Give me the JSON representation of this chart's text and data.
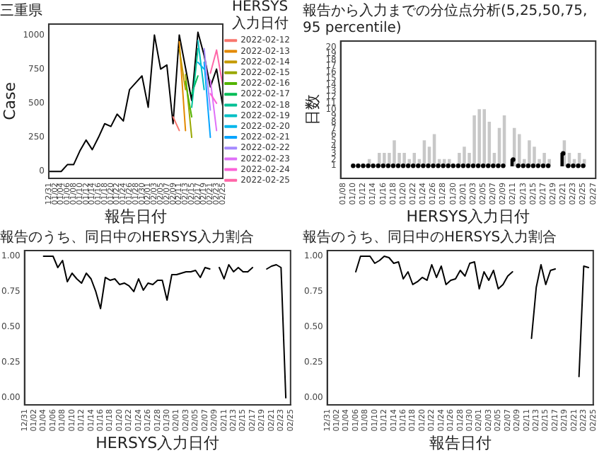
{
  "chart_data": [
    {
      "type": "line",
      "title": "三重県",
      "xlabel": "報告日付",
      "ylabel": "Case",
      "legend": "right",
      "legend_title": "HERSYS入力日付",
      "categories": [
        "12/31",
        "01/02",
        "01/04",
        "01/06",
        "01/08",
        "01/10",
        "01/12",
        "01/14",
        "01/16",
        "01/18",
        "01/20",
        "01/22",
        "01/24",
        "01/26",
        "01/28",
        "01/30",
        "02/01",
        "02/03",
        "02/05",
        "02/07",
        "02/09",
        "02/11",
        "02/13",
        "02/15",
        "02/17",
        "02/19",
        "02/21",
        "02/23",
        "02/25"
      ],
      "ylim": [
        -50,
        1080
      ],
      "yticks": [
        0,
        250,
        500,
        750,
        1000
      ],
      "series": [
        {
          "name": "2022-02-12",
          "color": "#f8766d",
          "values": [
            null,
            null,
            null,
            null,
            null,
            null,
            null,
            null,
            null,
            null,
            null,
            null,
            null,
            null,
            null,
            null,
            null,
            null,
            null,
            null,
            400,
            300,
            null,
            null,
            null,
            null,
            null,
            null,
            null
          ]
        },
        {
          "name": "2022-02-13",
          "color": "#e38900",
          "values": [
            null,
            null,
            null,
            null,
            null,
            null,
            null,
            null,
            null,
            null,
            null,
            null,
            null,
            null,
            null,
            null,
            null,
            null,
            null,
            null,
            null,
            950,
            300,
            null,
            null,
            null,
            null,
            null,
            null
          ]
        },
        {
          "name": "2022-02-14",
          "color": "#c49a00",
          "values": [
            null,
            null,
            null,
            null,
            null,
            null,
            null,
            null,
            null,
            null,
            null,
            null,
            null,
            null,
            null,
            null,
            null,
            null,
            null,
            null,
            null,
            900,
            600,
            null,
            null,
            null,
            null,
            null,
            null
          ]
        },
        {
          "name": "2022-02-15",
          "color": "#99a800",
          "values": [
            null,
            null,
            null,
            null,
            null,
            null,
            null,
            null,
            null,
            null,
            null,
            null,
            null,
            null,
            null,
            null,
            null,
            null,
            null,
            null,
            null,
            null,
            710,
            250,
            null,
            null,
            null,
            null,
            null
          ]
        },
        {
          "name": "2022-02-16",
          "color": "#53b400",
          "values": [
            null,
            null,
            null,
            null,
            null,
            null,
            null,
            null,
            null,
            null,
            null,
            null,
            null,
            null,
            null,
            null,
            null,
            null,
            null,
            null,
            null,
            null,
            660,
            400,
            null,
            null,
            null,
            null,
            null
          ]
        },
        {
          "name": "2022-02-17",
          "color": "#00bc56",
          "values": [
            null,
            null,
            null,
            null,
            null,
            null,
            null,
            null,
            null,
            null,
            null,
            null,
            null,
            null,
            null,
            null,
            null,
            null,
            null,
            null,
            null,
            null,
            null,
            570,
            700,
            null,
            null,
            null,
            null
          ]
        },
        {
          "name": "2022-02-18",
          "color": "#00c094",
          "values": [
            null,
            null,
            null,
            null,
            null,
            null,
            null,
            null,
            null,
            null,
            null,
            null,
            null,
            null,
            null,
            null,
            null,
            null,
            null,
            null,
            null,
            null,
            null,
            470,
            900,
            null,
            null,
            null,
            null
          ]
        },
        {
          "name": "2022-02-19",
          "color": "#00bfc4",
          "values": [
            null,
            null,
            null,
            null,
            null,
            null,
            null,
            null,
            null,
            null,
            null,
            null,
            null,
            null,
            null,
            null,
            null,
            null,
            null,
            null,
            null,
            null,
            null,
            null,
            960,
            600,
            null,
            null,
            null
          ]
        },
        {
          "name": "2022-02-20",
          "color": "#00b6eb",
          "values": [
            null,
            null,
            null,
            null,
            null,
            null,
            null,
            null,
            null,
            null,
            null,
            null,
            null,
            null,
            null,
            null,
            null,
            null,
            null,
            null,
            null,
            null,
            null,
            null,
            800,
            750,
            null,
            null,
            null
          ]
        },
        {
          "name": "2022-02-21",
          "color": "#06a4ff",
          "values": [
            null,
            null,
            null,
            null,
            null,
            null,
            null,
            null,
            null,
            null,
            null,
            null,
            null,
            null,
            null,
            null,
            null,
            null,
            null,
            null,
            null,
            null,
            null,
            null,
            null,
            800,
            250,
            null,
            null
          ]
        },
        {
          "name": "2022-02-22",
          "color": "#a58aff",
          "values": [
            null,
            null,
            null,
            null,
            null,
            null,
            null,
            null,
            null,
            null,
            null,
            null,
            null,
            null,
            null,
            null,
            null,
            null,
            null,
            null,
            null,
            null,
            null,
            null,
            null,
            900,
            450,
            null,
            null
          ]
        },
        {
          "name": "2022-02-23",
          "color": "#df70f8",
          "values": [
            null,
            null,
            null,
            null,
            null,
            null,
            null,
            null,
            null,
            null,
            null,
            null,
            null,
            null,
            null,
            null,
            null,
            null,
            null,
            null,
            null,
            null,
            null,
            null,
            null,
            null,
            670,
            300,
            null
          ]
        },
        {
          "name": "2022-02-24",
          "color": "#fb61d7",
          "values": [
            null,
            null,
            null,
            null,
            null,
            null,
            null,
            null,
            null,
            null,
            null,
            null,
            null,
            null,
            null,
            null,
            null,
            null,
            null,
            null,
            null,
            null,
            null,
            null,
            null,
            null,
            570,
            500,
            null
          ]
        },
        {
          "name": "2022-02-25",
          "color": "#ff66a8",
          "values": [
            null,
            null,
            null,
            null,
            null,
            null,
            null,
            null,
            null,
            null,
            null,
            null,
            null,
            null,
            null,
            null,
            null,
            null,
            null,
            null,
            null,
            null,
            null,
            null,
            null,
            null,
            720,
            890,
            630
          ]
        },
        {
          "color": "#000000",
          "values": [
            0,
            0,
            0,
            50,
            50,
            150,
            230,
            160,
            250,
            350,
            330,
            420,
            370,
            600,
            650,
            700,
            470,
            1000,
            750,
            780,
            350,
            1000,
            760,
            520,
            1020,
            850,
            620,
            750,
            480
          ]
        }
      ]
    },
    {
      "type": "bar",
      "title": "報告から入力までの分位点分析(5,25,50,75,95 percentile)",
      "xlabel": "HERSYS入力日付",
      "ylabel": "日数",
      "categories": [
        "01/08",
        null,
        "01/10",
        null,
        "01/12",
        null,
        "01/14",
        null,
        "01/16",
        null,
        "01/18",
        null,
        "01/20",
        null,
        "01/22",
        null,
        "01/24",
        null,
        "01/26",
        null,
        "01/28",
        null,
        "01/30",
        null,
        "02/01",
        null,
        "02/03",
        null,
        "02/05",
        null,
        "02/07",
        null,
        "02/09",
        null,
        "02/11",
        null,
        "02/13",
        null,
        "02/15",
        null,
        "02/17",
        null,
        "02/19",
        null,
        "02/21",
        null,
        "02/23",
        null,
        "02/25",
        null,
        "02/27"
      ],
      "ylim": [
        -1,
        21
      ],
      "yticks": [
        1,
        2,
        3,
        4,
        5,
        6,
        7,
        8,
        9,
        10,
        11,
        12,
        13,
        14,
        15,
        16,
        17,
        18,
        19,
        20
      ],
      "series": [
        {
          "type": "bar",
          "color": "#c8c8c8",
          "base": [
            null,
            null,
            null,
            null,
            null,
            1,
            null,
            1,
            1,
            1,
            1,
            1,
            1,
            1,
            1,
            1,
            1,
            1,
            1,
            1,
            1,
            1,
            null,
            1,
            1,
            1,
            1,
            1,
            1,
            1,
            1,
            1,
            1,
            null,
            1,
            1,
            1,
            1,
            1,
            1,
            1,
            1,
            null,
            null,
            1,
            1,
            1,
            1,
            1,
            null,
            null
          ],
          "values": [
            null,
            null,
            null,
            null,
            null,
            1,
            null,
            2,
            2,
            2,
            4,
            2,
            2,
            1,
            2,
            1,
            4,
            3,
            5,
            1,
            1,
            1,
            null,
            2,
            3,
            2,
            8,
            9,
            9,
            7,
            2,
            6,
            8,
            null,
            6,
            5,
            1,
            4,
            3,
            1,
            2,
            1,
            null,
            null,
            4,
            2,
            1,
            2,
            1,
            null,
            null
          ]
        },
        {
          "type": "bar",
          "color": "#000000",
          "base": [
            null,
            null,
            null,
            null,
            null,
            null,
            null,
            null,
            null,
            null,
            null,
            null,
            null,
            null,
            null,
            null,
            null,
            null,
            null,
            null,
            null,
            null,
            null,
            null,
            null,
            null,
            null,
            null,
            null,
            null,
            null,
            null,
            null,
            null,
            1,
            null,
            null,
            null,
            null,
            null,
            null,
            null,
            null,
            null,
            1,
            null,
            null,
            null,
            null,
            null,
            null
          ],
          "values": [
            null,
            null,
            null,
            null,
            null,
            null,
            null,
            null,
            null,
            null,
            null,
            null,
            null,
            null,
            null,
            null,
            null,
            null,
            null,
            null,
            null,
            null,
            null,
            null,
            null,
            null,
            null,
            null,
            null,
            null,
            null,
            null,
            null,
            null,
            1,
            null,
            null,
            null,
            null,
            null,
            null,
            null,
            null,
            null,
            2,
            null,
            null,
            null,
            null,
            null,
            null
          ]
        },
        {
          "type": "scatter",
          "color": "#000000",
          "marker": "circle",
          "values": [
            null,
            null,
            1,
            1,
            1,
            1,
            1,
            1,
            1,
            1,
            1,
            1,
            1,
            1,
            1,
            1,
            1,
            1,
            1,
            1,
            1,
            1,
            1,
            1,
            1,
            1,
            1,
            1,
            1,
            1,
            1,
            1,
            1,
            null,
            2,
            1,
            1,
            1,
            1,
            1,
            1,
            1,
            null,
            null,
            3,
            1,
            1,
            1,
            1,
            null,
            null
          ]
        }
      ]
    },
    {
      "type": "line",
      "title": "報告のうち、同日中のHERSYS入力割合",
      "xlabel": "HERSYS入力日付",
      "categories": [
        "12/31",
        null,
        "01/02",
        null,
        "01/04",
        null,
        "01/06",
        null,
        "01/08",
        null,
        "01/10",
        null,
        "01/12",
        null,
        "01/14",
        null,
        "01/16",
        null,
        "01/18",
        null,
        "01/20",
        null,
        "01/22",
        null,
        "01/24",
        null,
        "01/26",
        null,
        "01/28",
        null,
        "01/30",
        null,
        "02/01",
        null,
        "02/03",
        null,
        "02/05",
        null,
        "02/07",
        null,
        "02/09",
        null,
        "02/11",
        null,
        "02/13",
        null,
        "02/15",
        null,
        "02/17",
        null,
        "02/19",
        null,
        "02/21",
        null,
        "02/23",
        null,
        "02/25"
      ],
      "ylim": [
        -0.05,
        1.04
      ],
      "yticks": [
        {
          "value": 0,
          "label": "0.00"
        },
        {
          "value": 0.25,
          "label": "0.25"
        },
        {
          "value": 0.5,
          "label": "0.50"
        },
        {
          "value": 0.75,
          "label": "0.75"
        },
        {
          "value": 1,
          "label": "1.00"
        }
      ],
      "color": "#000000",
      "values": [
        null,
        null,
        null,
        null,
        1.0,
        1.0,
        1.0,
        0.92,
        0.97,
        0.82,
        0.88,
        0.84,
        0.81,
        0.88,
        0.84,
        0.75,
        0.63,
        0.85,
        0.83,
        0.84,
        0.8,
        0.81,
        0.79,
        0.75,
        0.84,
        0.76,
        0.81,
        0.8,
        0.83,
        0.83,
        0.69,
        0.87,
        0.87,
        0.88,
        0.89,
        0.89,
        0.9,
        0.85,
        0.92,
        0.91,
        null,
        0.92,
        0.84,
        0.94,
        0.89,
        0.92,
        0.89,
        0.89,
        0.92,
        null,
        null,
        0.91,
        0.93,
        0.94,
        0.92,
        0,
        null
      ]
    },
    {
      "type": "line",
      "title": "報告のうち、同日中のHERSYS入力割合",
      "xlabel": "報告日付",
      "categories": [
        "12/31",
        null,
        "01/02",
        null,
        "01/04",
        null,
        "01/06",
        null,
        "01/08",
        null,
        "01/10",
        null,
        "01/12",
        null,
        "01/14",
        null,
        "01/16",
        null,
        "01/18",
        null,
        "01/20",
        null,
        "01/22",
        null,
        "01/24",
        null,
        "01/26",
        null,
        "01/28",
        null,
        "01/30",
        null,
        "02/01",
        null,
        "02/03",
        null,
        "02/05",
        null,
        "02/07",
        null,
        "02/09",
        null,
        "02/11",
        null,
        "02/13",
        null,
        "02/15",
        null,
        "02/17",
        null,
        "02/19",
        null,
        "02/21",
        null,
        "02/23",
        null,
        "02/25"
      ],
      "ylim": [
        -0.05,
        1.04
      ],
      "yticks": [
        {
          "value": 0,
          "label": "0.00"
        },
        {
          "value": 0.25,
          "label": "0.25"
        },
        {
          "value": 0.5,
          "label": "0.50"
        },
        {
          "value": 0.75,
          "label": "0.75"
        },
        {
          "value": 1,
          "label": "1.00"
        }
      ],
      "color": "#000000",
      "values": [
        null,
        null,
        null,
        null,
        null,
        null,
        0.89,
        1,
        1,
        1,
        0.95,
        0.97,
        1,
        0.99,
        0.95,
        0.96,
        0.84,
        0.89,
        0.8,
        0.82,
        0.85,
        0.83,
        0.94,
        0.85,
        0.93,
        0.8,
        0.83,
        0.84,
        0.9,
        0.86,
        0.95,
        0.96,
        0.77,
        0.89,
        0.83,
        0.9,
        0.77,
        0.8,
        0.86,
        0.89,
        null,
        null,
        null,
        0.42,
        0.78,
        0.94,
        0.8,
        0.9,
        0.91,
        null,
        null,
        null,
        null,
        0.15,
        0.93,
        0.92,
        null
      ]
    }
  ]
}
